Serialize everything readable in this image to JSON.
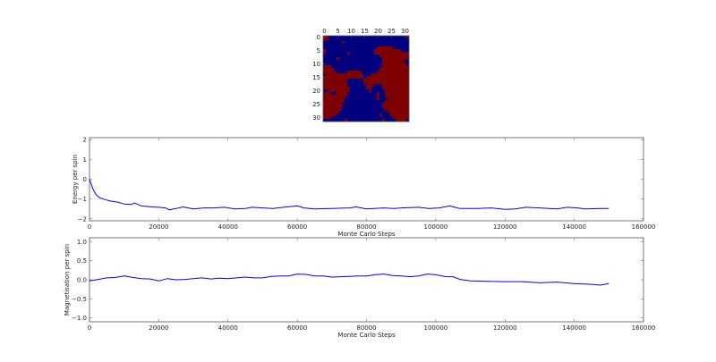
{
  "chart_data": [
    {
      "type": "heatmap",
      "title": "",
      "colors": {
        "up": "#7f0000",
        "down": "#00007f"
      },
      "xticks": [
        "0",
        "5",
        "10",
        "15",
        "20",
        "25",
        "30"
      ],
      "yticks": [
        "0",
        "5",
        "10",
        "15",
        "20",
        "25",
        "30"
      ],
      "grid": [
        "11000000000000000000000000000001",
        "11000000000000000000000000000000",
        "00000001000000000000000000000000",
        "00000000000000000000000000000000",
        "00000000000000000000111111000000",
        "10000000000000000001111111111000",
        "10000000010000000001111111111111",
        "00000000000000000000011111111111",
        "00000100000000000000001111111111",
        "00000000000000000000001111111100",
        "00000000000000000000001111111110",
        "11100000000000000000001111111111",
        "11110000000000000000011111111111",
        "11111000011111000000111111111111",
        "01111111111111100011111111111111",
        "11111111111111101111111111111111",
        "11111111100000011111111111111111",
        "11111111100000011111111111111111",
        "11111111100000001110001111111111",
        "11111111110000001100001111111111",
        "00111111110000000100000111111111",
        "11100111100000000000100111111111",
        "11111111100000000000100111111111",
        "11111111000000000000100011111111",
        "11111111000000000000000111111111",
        "11111110000000000000001111111111",
        "11111110000000000000001111111111",
        "11111110000000000000000111111111",
        "11111100000000000000000011111111",
        "11111000000000000000010001111111",
        "11100000000000000000000000111111",
        "00000000100000000000001000011110"
      ]
    },
    {
      "type": "line",
      "xlabel": "Monte Carlo Steps",
      "ylabel": "Energy per spin",
      "xlim": [
        0,
        160000
      ],
      "ylim": [
        -2.1,
        2.1
      ],
      "xticks": [
        0,
        20000,
        40000,
        60000,
        80000,
        100000,
        120000,
        140000,
        160000
      ],
      "xtick_labels": [
        "0",
        "20000",
        "40000",
        "60000",
        "80000",
        "100000",
        "120000",
        "140000",
        "160000"
      ],
      "yticks": [
        2,
        1,
        0,
        -1,
        -2
      ],
      "ytick_labels": [
        "2",
        "1",
        "0",
        "−1",
        "−2"
      ],
      "line_color": "#0000ff",
      "series": [
        {
          "name": "energy",
          "x": [
            0,
            1000,
            2000,
            3000,
            5000,
            6000,
            8000,
            10000,
            12000,
            13000,
            15000,
            18000,
            20000,
            22000,
            23000,
            25000,
            27000,
            30000,
            33000,
            36000,
            39000,
            42000,
            45000,
            47000,
            50000,
            53000,
            56000,
            60000,
            62000,
            65000,
            70000,
            75000,
            77000,
            80000,
            85000,
            88000,
            90000,
            95000,
            98000,
            101000,
            104000,
            107000,
            112000,
            116000,
            120000,
            123000,
            126000,
            130000,
            135000,
            138000,
            141000,
            143000,
            148000,
            150000
          ],
          "y": [
            0,
            -0.5,
            -0.8,
            -0.95,
            -1.05,
            -1.1,
            -1.15,
            -1.25,
            -1.28,
            -1.2,
            -1.35,
            -1.4,
            -1.42,
            -1.45,
            -1.55,
            -1.48,
            -1.4,
            -1.5,
            -1.45,
            -1.45,
            -1.42,
            -1.5,
            -1.48,
            -1.42,
            -1.45,
            -1.48,
            -1.42,
            -1.35,
            -1.45,
            -1.5,
            -1.48,
            -1.45,
            -1.4,
            -1.5,
            -1.45,
            -1.48,
            -1.45,
            -1.42,
            -1.48,
            -1.45,
            -1.35,
            -1.48,
            -1.48,
            -1.45,
            -1.52,
            -1.5,
            -1.42,
            -1.45,
            -1.5,
            -1.42,
            -1.45,
            -1.5,
            -1.48,
            -1.48
          ]
        }
      ]
    },
    {
      "type": "line",
      "xlabel": "Monte Carlo Steps",
      "ylabel": "Magnetisation per spin",
      "xlim": [
        0,
        160000
      ],
      "ylim": [
        -1.1,
        1.1
      ],
      "xticks": [
        0,
        20000,
        40000,
        60000,
        80000,
        100000,
        120000,
        140000,
        160000
      ],
      "xtick_labels": [
        "0",
        "20000",
        "40000",
        "60000",
        "80000",
        "100000",
        "120000",
        "140000",
        "160000"
      ],
      "yticks": [
        1,
        0.5,
        0,
        -0.5,
        -1
      ],
      "ytick_labels": [
        "1.0",
        "0.5",
        "0.0",
        "−0.5",
        "−1.0"
      ],
      "line_color": "#0000ff",
      "series": [
        {
          "name": "magnetisation",
          "x": [
            0,
            2500,
            5000,
            7500,
            10000,
            12500,
            15000,
            17500,
            20000,
            22500,
            25000,
            27500,
            30000,
            32500,
            35000,
            37500,
            40000,
            42500,
            45000,
            47500,
            50000,
            52500,
            55000,
            57500,
            60000,
            62500,
            65000,
            67500,
            70000,
            72500,
            75000,
            77500,
            80000,
            82500,
            85000,
            87500,
            90000,
            92500,
            95000,
            97500,
            100000,
            103000,
            105000,
            107000,
            110000,
            115000,
            120000,
            125000,
            130000,
            135000,
            140000,
            145000,
            147500,
            150000
          ],
          "y": [
            -0.03,
            0.01,
            0.05,
            0.06,
            0.1,
            0.06,
            0.03,
            0.02,
            -0.03,
            0.03,
            0.0,
            0.01,
            0.03,
            0.05,
            0.02,
            0.04,
            0.03,
            0.05,
            0.07,
            0.05,
            0.05,
            0.09,
            0.1,
            0.1,
            0.15,
            0.14,
            0.1,
            0.1,
            0.07,
            0.08,
            0.09,
            0.1,
            0.1,
            0.13,
            0.15,
            0.11,
            0.1,
            0.08,
            0.1,
            0.15,
            0.13,
            0.08,
            0.08,
            0.01,
            -0.03,
            -0.04,
            -0.05,
            -0.05,
            -0.08,
            -0.06,
            -0.1,
            -0.12,
            -0.14,
            -0.1
          ]
        }
      ]
    }
  ]
}
